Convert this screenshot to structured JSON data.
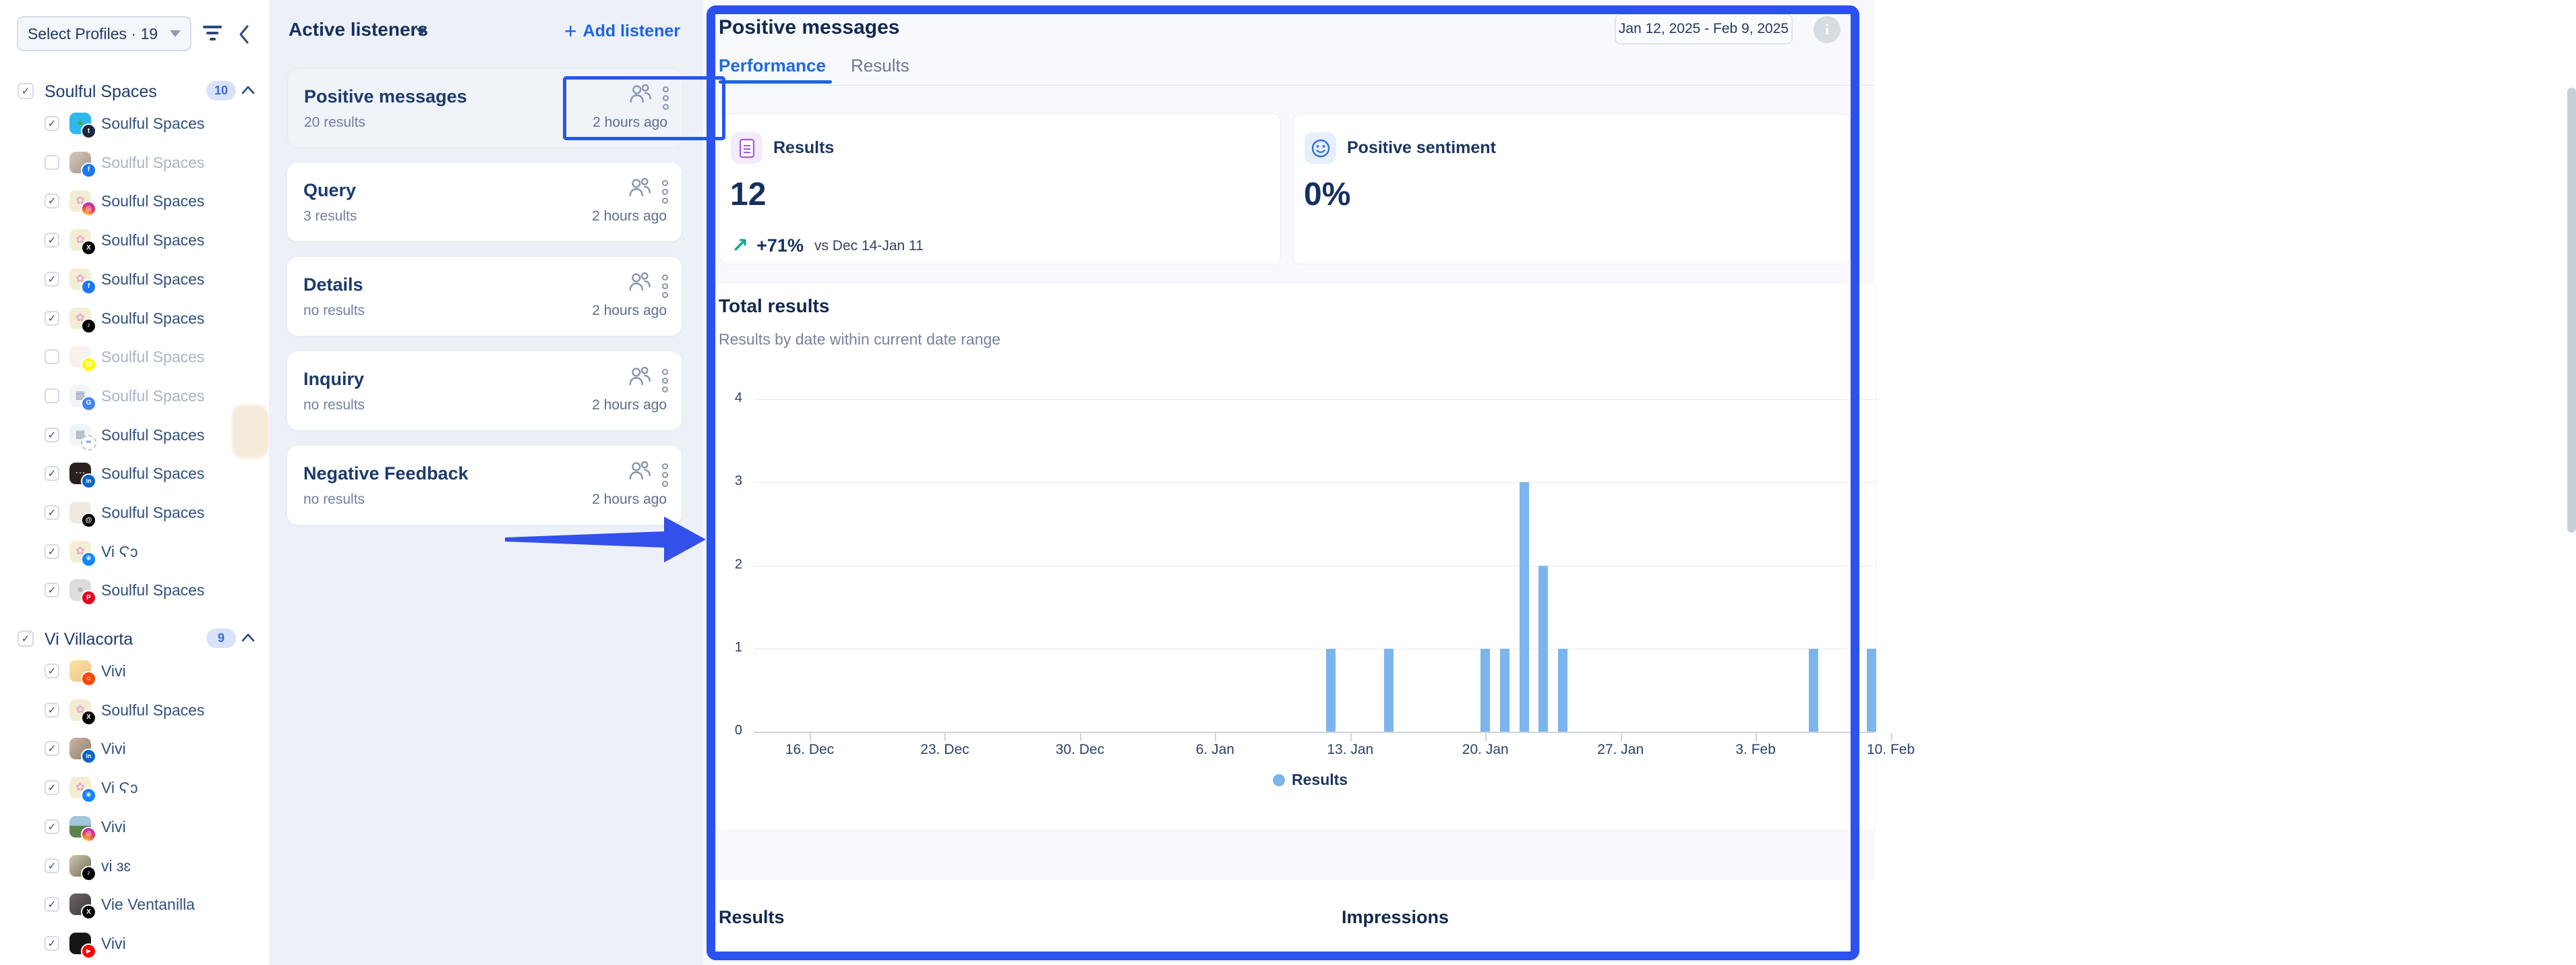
{
  "icons": {
    "check": "✓",
    "info": "i",
    "plus": "+",
    "trend_up": "↗"
  },
  "colors": {
    "accent_blue": "#1e63e9",
    "annotation_blue": "#2b51f0",
    "bar_blue": "#7cb5ec",
    "navy": "#16305e",
    "green": "#13a78f"
  },
  "platforms": {
    "tumblr": {
      "bg": "#1b2a3c",
      "fg": "#ffffff",
      "glyph": "t"
    },
    "facebook": {
      "bg": "#1877f2",
      "fg": "#ffffff",
      "glyph": "f"
    },
    "instagram": {
      "bg": "radial-gradient(circle at 30% 110%, #fdd373 8%, #f28a2f 30%, #e8336f 60%, #b534b6 82%, #6a52d6)",
      "fg": "#ffffff",
      "glyph": "◎"
    },
    "x": {
      "bg": "#000000",
      "fg": "#ffffff",
      "glyph": "X"
    },
    "tiktok": {
      "bg": "#010101",
      "fg": "#ffffff",
      "glyph": "♪"
    },
    "snapchat": {
      "bg": "#fffb00",
      "fg": "#ffffff",
      "glyph": "ᗢ"
    },
    "google": {
      "bg": "#4285f4",
      "fg": "#ffffff",
      "glyph": "G"
    },
    "meta": {
      "bg": "#ffffff",
      "fg": "#2c6bed",
      "glyph": "∞",
      "border": "2px dashed #bcc8dc"
    },
    "linkedin": {
      "bg": "#0a66c2",
      "fg": "#ffffff",
      "glyph": "in"
    },
    "threads": {
      "bg": "#000000",
      "fg": "#ffffff",
      "glyph": "@"
    },
    "bluesky": {
      "bg": "#1185fe",
      "fg": "#ffffff",
      "glyph": "❋"
    },
    "pinterest": {
      "bg": "#e60023",
      "fg": "#ffffff",
      "glyph": "P"
    },
    "reddit": {
      "bg": "#ff4500",
      "fg": "#ffffff",
      "glyph": "☺"
    },
    "youtube": {
      "bg": "#ff0000",
      "fg": "#ffffff",
      "glyph": "▶"
    }
  },
  "sidebar": {
    "select_profiles": "Select Profiles · 19",
    "groups": [
      {
        "name": "Soulful Spaces",
        "count": "10",
        "checked": true,
        "items": [
          {
            "label": "Soulful Spaces",
            "checked": true,
            "platform": "tumblr",
            "avatar": {
              "bg": "#2fb7f0",
              "glyph": "●",
              "color": "#3cb24c"
            }
          },
          {
            "label": "Soulful Spaces",
            "checked": false,
            "platform": "facebook",
            "avatar": {
              "bg": "linear-gradient(135deg,#d8c8bb,#a4928a)",
              "glyph": ""
            }
          },
          {
            "label": "Soulful Spaces",
            "checked": true,
            "platform": "instagram",
            "avatar": {
              "bg": "#f1eed3",
              "glyph": "✿",
              "color": "#eba6c9"
            }
          },
          {
            "label": "Soulful Spaces",
            "checked": true,
            "platform": "x",
            "avatar": {
              "bg": "#f1eed3",
              "glyph": "✿",
              "color": "#eba6c9"
            }
          },
          {
            "label": "Soulful Spaces",
            "checked": true,
            "platform": "facebook",
            "avatar": {
              "bg": "#f1eed3",
              "glyph": "✿",
              "color": "#eba6c9"
            }
          },
          {
            "label": "Soulful Spaces",
            "checked": true,
            "platform": "tiktok",
            "avatar": {
              "bg": "#f1eed3",
              "glyph": "✿",
              "color": "#eba6c9"
            }
          },
          {
            "label": "Soulful Spaces",
            "checked": false,
            "platform": "snapchat",
            "avatar": {
              "bg": "#f7f2ef",
              "glyph": ""
            }
          },
          {
            "label": "Soulful Spaces",
            "checked": false,
            "platform": "google",
            "avatar": {
              "bg": "#f2f4f7",
              "glyph": "▦",
              "color": "#97a2b4"
            }
          },
          {
            "label": "Soulful Spaces",
            "checked": true,
            "platform": "meta",
            "avatar": {
              "bg": "#f2f4f7",
              "glyph": "▦",
              "color": "#97a2b4"
            }
          },
          {
            "label": "Soulful Spaces",
            "checked": true,
            "platform": "linkedin",
            "avatar": {
              "bg": "#2b211c",
              "glyph": "⋯",
              "color": "#d8cec4"
            }
          },
          {
            "label": "Soulful Spaces",
            "checked": true,
            "platform": "threads",
            "avatar": {
              "bg": "#efeae1",
              "glyph": ""
            }
          },
          {
            "label": "Vi Ϛɔ",
            "checked": true,
            "platform": "bluesky",
            "avatar": {
              "bg": "#f1eed3",
              "glyph": "✿",
              "color": "#eba6c9"
            }
          },
          {
            "label": "Soulful Spaces",
            "checked": true,
            "platform": "pinterest",
            "avatar": {
              "bg": "#dddddd",
              "glyph": "●",
              "color": "#b5b5b5"
            }
          }
        ]
      },
      {
        "name": "Vi Villacorta",
        "count": "9",
        "checked": true,
        "items": [
          {
            "label": "Vivi",
            "checked": true,
            "platform": "reddit",
            "avatar": {
              "bg": "linear-gradient(135deg,#f8e6a7,#f2c083)",
              "glyph": ""
            }
          },
          {
            "label": "Soulful Spaces",
            "checked": true,
            "platform": "x",
            "avatar": {
              "bg": "#f1eed3",
              "glyph": "✿",
              "color": "#eba6c9"
            }
          },
          {
            "label": "Vivi",
            "checked": true,
            "platform": "linkedin",
            "avatar": {
              "bg": "linear-gradient(135deg,#cdb9a6,#8f7a6b)",
              "glyph": ""
            }
          },
          {
            "label": "Vi Ϛɔ",
            "checked": true,
            "platform": "bluesky",
            "avatar": {
              "bg": "#f1eed3",
              "glyph": "✿",
              "color": "#eba6c9"
            }
          },
          {
            "label": "Vivi",
            "checked": true,
            "platform": "instagram",
            "avatar": {
              "bg": "linear-gradient(180deg,#a3c6da 45%,#61814f 45%)",
              "glyph": ""
            }
          },
          {
            "label": "vi ɜɛ",
            "checked": true,
            "platform": "tiktok",
            "avatar": {
              "bg": "linear-gradient(135deg,#cfc7ad,#6e6c59)",
              "glyph": ""
            }
          },
          {
            "label": "Vie Ventanilla",
            "checked": true,
            "platform": "x",
            "avatar": {
              "bg": "linear-gradient(135deg,#6e6562,#3a3844)",
              "glyph": ""
            }
          },
          {
            "label": "Vivi",
            "checked": true,
            "platform": "youtube",
            "avatar": {
              "bg": "#161616",
              "glyph": ""
            }
          }
        ]
      }
    ]
  },
  "listeners": {
    "title": "Active listeners",
    "add_label": "Add listener",
    "cards": [
      {
        "title": "Positive messages",
        "results": "20 results",
        "updated": "2 hours ago",
        "selected": true
      },
      {
        "title": "Query",
        "results": "3 results",
        "updated": "2 hours ago",
        "selected": false
      },
      {
        "title": "Details",
        "results": "no results",
        "updated": "2 hours ago",
        "selected": false
      },
      {
        "title": "Inquiry",
        "results": "no results",
        "updated": "2 hours ago",
        "selected": false
      },
      {
        "title": "Negative Feedback",
        "results": "no results",
        "updated": "2 hours ago",
        "selected": false
      }
    ]
  },
  "panel": {
    "title": "Positive messages",
    "date_range": "Jan 12, 2025 - Feb 9, 2025",
    "tabs": [
      {
        "label": "Performance",
        "active": true
      },
      {
        "label": "Results",
        "active": false
      }
    ],
    "stats": {
      "results": {
        "label": "Results",
        "value": "12",
        "delta": "+71%",
        "vs": "vs Dec 14-Jan 11"
      },
      "sentiment": {
        "label": "Positive sentiment",
        "value": "0%"
      }
    },
    "section": {
      "title": "Total results",
      "subtitle": "Results by date within current date range"
    },
    "bottom_sections": [
      "Results",
      "Impressions"
    ]
  },
  "chart_data": {
    "type": "bar",
    "title": "Total results",
    "subtitle": "Results by date within current date range",
    "xlabel": "",
    "ylabel": "",
    "ylim": [
      0,
      4
    ],
    "y_ticks": [
      0,
      1,
      2,
      3,
      4
    ],
    "grid": true,
    "legend_position": "bottom",
    "x_tick_labels": [
      "16. Dec",
      "23. Dec",
      "30. Dec",
      "6. Jan",
      "13. Jan",
      "20. Jan",
      "27. Jan",
      "3. Feb",
      "10. Feb"
    ],
    "series": [
      {
        "name": "Results",
        "color": "#7cb5ec",
        "points": [
          {
            "date": "Jan 12",
            "value": 1,
            "day_offset": 27
          },
          {
            "date": "Jan 15",
            "value": 1,
            "day_offset": 30
          },
          {
            "date": "Jan 20",
            "value": 1,
            "day_offset": 35
          },
          {
            "date": "Jan 21",
            "value": 1,
            "day_offset": 36
          },
          {
            "date": "Jan 22",
            "value": 3,
            "day_offset": 37
          },
          {
            "date": "Jan 23",
            "value": 2,
            "day_offset": 38
          },
          {
            "date": "Jan 24",
            "value": 1,
            "day_offset": 39
          },
          {
            "date": "Feb 6",
            "value": 1,
            "day_offset": 52
          },
          {
            "date": "Feb 9",
            "value": 1,
            "day_offset": 55
          }
        ]
      }
    ]
  }
}
